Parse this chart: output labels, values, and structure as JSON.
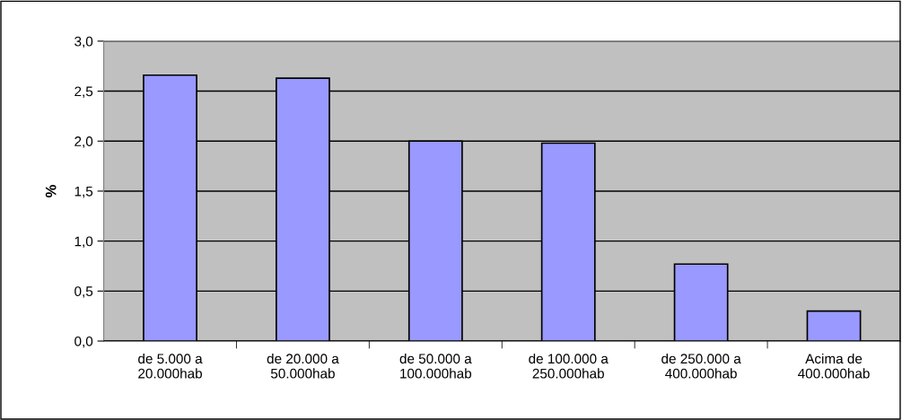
{
  "chart_data": {
    "type": "bar",
    "ylabel": "%",
    "categories": [
      "de 5.000 a\n20.000hab",
      "de 20.000 a\n50.000hab",
      "de 50.000 a\n100.000hab",
      "de 100.000 a\n250.000hab",
      "de 250.000 a\n400.000hab",
      "Acima de\n400.000hab"
    ],
    "values": [
      2.66,
      2.63,
      2.0,
      1.98,
      0.77,
      0.3
    ],
    "color": "#9999ff",
    "ylim": [
      0,
      3.0
    ],
    "yticks": [
      {
        "value": 0,
        "label": "0,0"
      },
      {
        "value": 0.5,
        "label": "0,5"
      },
      {
        "value": 1.0,
        "label": "1,0"
      },
      {
        "value": 1.5,
        "label": "1,5"
      },
      {
        "value": 2.0,
        "label": "2,0"
      },
      {
        "value": 2.5,
        "label": "2,5"
      },
      {
        "value": 3.0,
        "label": "3,0"
      }
    ],
    "grid": "y",
    "legend": false
  }
}
